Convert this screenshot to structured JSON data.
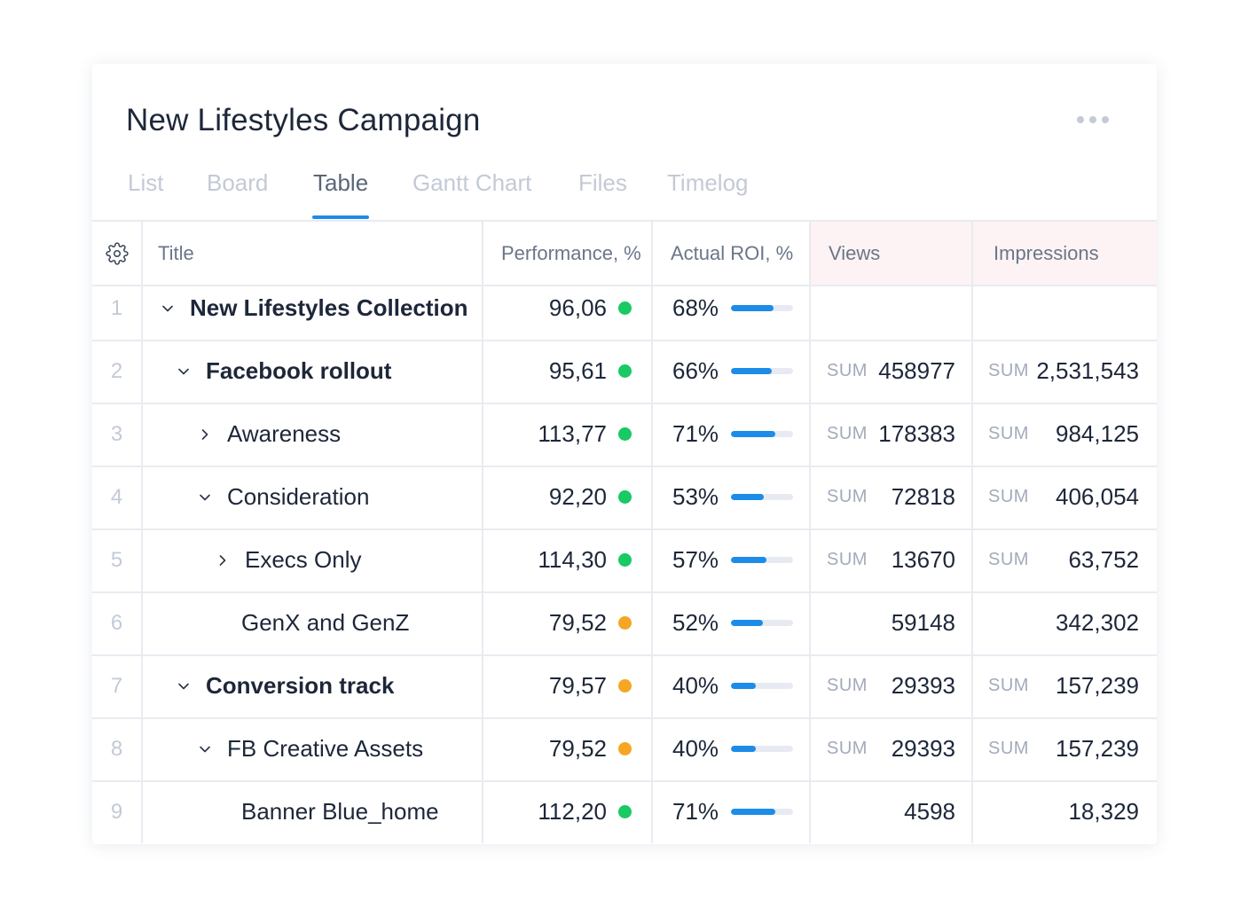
{
  "header": {
    "title": "New Lifestyles Campaign"
  },
  "tabs": [
    {
      "label": "List",
      "active": false
    },
    {
      "label": "Board",
      "active": false
    },
    {
      "label": "Table",
      "active": true
    },
    {
      "label": "Gantt Chart",
      "active": false
    },
    {
      "label": "Files",
      "active": false
    },
    {
      "label": "Timelog",
      "active": false
    }
  ],
  "colors": {
    "accent": "#1d8ce8",
    "green": "#18c964",
    "orange": "#f5a623",
    "header_highlight": "#fdf3f4"
  },
  "icons": {
    "settings": "gear-icon",
    "more": "more-horizontal-icon",
    "expanded": "chevron-down-icon",
    "collapsed": "chevron-right-icon"
  },
  "table": {
    "columns": {
      "title": "Title",
      "performance": "Performance, %",
      "roi": "Actual ROI, %",
      "views": "Views",
      "impressions": "Impressions"
    },
    "rows": [
      {
        "num": "1",
        "title": "New Lifestyles Collection",
        "level": 0,
        "chevron": "down",
        "bold": true,
        "performance": "96,06",
        "status": "green",
        "roi": "68%",
        "roi_value": 0.68,
        "views_sum": "",
        "views": "",
        "imp_sum": "",
        "impressions": ""
      },
      {
        "num": "2",
        "title": "Facebook rollout",
        "level": 1,
        "chevron": "down",
        "bold": true,
        "performance": "95,61",
        "status": "green",
        "roi": "66%",
        "roi_value": 0.66,
        "views_sum": "SUM",
        "views": "458977",
        "imp_sum": "SUM",
        "impressions": "2,531,543"
      },
      {
        "num": "3",
        "title": "Awareness",
        "level": 2,
        "chevron": "right",
        "bold": false,
        "performance": "113,77",
        "status": "green",
        "roi": "71%",
        "roi_value": 0.71,
        "views_sum": "SUM",
        "views": "178383",
        "imp_sum": "SUM",
        "impressions": "984,125"
      },
      {
        "num": "4",
        "title": "Consideration",
        "level": 2,
        "chevron": "down",
        "bold": false,
        "performance": "92,20",
        "status": "green",
        "roi": "53%",
        "roi_value": 0.53,
        "views_sum": "SUM",
        "views": "72818",
        "imp_sum": "SUM",
        "impressions": "406,054"
      },
      {
        "num": "5",
        "title": "Execs Only",
        "level": 3,
        "chevron": "right",
        "bold": false,
        "performance": "114,30",
        "status": "green",
        "roi": "57%",
        "roi_value": 0.57,
        "views_sum": "SUM",
        "views": "13670",
        "imp_sum": "SUM",
        "impressions": "63,752"
      },
      {
        "num": "6",
        "title": "GenX and GenZ",
        "level": 3,
        "chevron": "none",
        "bold": false,
        "performance": "79,52",
        "status": "orange",
        "roi": "52%",
        "roi_value": 0.52,
        "views_sum": "",
        "views": "59148",
        "imp_sum": "",
        "impressions": "342,302"
      },
      {
        "num": "7",
        "title": "Conversion track",
        "level": 1,
        "chevron": "down",
        "bold": true,
        "performance": "79,57",
        "status": "orange",
        "roi": "40%",
        "roi_value": 0.4,
        "views_sum": "SUM",
        "views": "29393",
        "imp_sum": "SUM",
        "impressions": "157,239"
      },
      {
        "num": "8",
        "title": "FB Creative Assets",
        "level": 2,
        "chevron": "down",
        "bold": false,
        "performance": "79,52",
        "status": "orange",
        "roi": "40%",
        "roi_value": 0.4,
        "views_sum": "SUM",
        "views": "29393",
        "imp_sum": "SUM",
        "impressions": "157,239"
      },
      {
        "num": "9",
        "title": "Banner Blue_home",
        "level": 3,
        "chevron": "none",
        "bold": false,
        "performance": "112,20",
        "status": "green",
        "roi": "71%",
        "roi_value": 0.71,
        "views_sum": "",
        "views": "4598",
        "imp_sum": "",
        "impressions": "18,329"
      }
    ]
  }
}
